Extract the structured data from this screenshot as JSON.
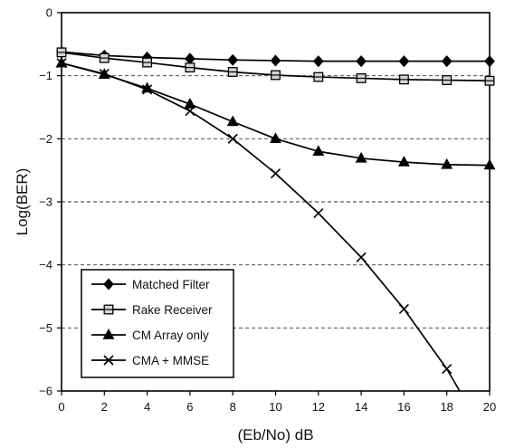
{
  "chart_data": {
    "type": "line",
    "xlabel": "(Eb/No) dB",
    "ylabel": "Log(BER)",
    "xlim": [
      0,
      20
    ],
    "ylim": [
      -6,
      0
    ],
    "xticks": [
      "0",
      "2",
      "4",
      "6",
      "8",
      "10",
      "12",
      "14",
      "16",
      "18",
      "20"
    ],
    "yticks": [
      "0",
      "-1",
      "-2",
      "-3",
      "-4",
      "-5",
      "-6"
    ],
    "grid": "dashed-horizontal",
    "legend_position": "bottom-left",
    "series": [
      {
        "name": "Matched Filter",
        "marker": "diamond",
        "x": [
          0,
          2,
          4,
          6,
          8,
          10,
          12,
          14,
          16,
          18,
          20
        ],
        "y": [
          -0.62,
          -0.68,
          -0.71,
          -0.73,
          -0.75,
          -0.76,
          -0.77,
          -0.77,
          -0.77,
          -0.77,
          -0.77
        ]
      },
      {
        "name": "Rake Receiver",
        "marker": "square",
        "x": [
          0,
          2,
          4,
          6,
          8,
          10,
          12,
          14,
          16,
          18,
          20
        ],
        "y": [
          -0.63,
          -0.72,
          -0.79,
          -0.87,
          -0.94,
          -0.99,
          -1.02,
          -1.04,
          -1.06,
          -1.07,
          -1.08
        ]
      },
      {
        "name": "CM Array only",
        "marker": "triangle",
        "x": [
          0,
          2,
          4,
          6,
          8,
          10,
          12,
          14,
          16,
          18,
          20
        ],
        "y": [
          -0.8,
          -0.98,
          -1.2,
          -1.45,
          -1.73,
          -2.0,
          -2.2,
          -2.31,
          -2.37,
          -2.41,
          -2.42
        ]
      },
      {
        "name": "CMA + MMSE",
        "marker": "x",
        "x": [
          0,
          2,
          4,
          6,
          8,
          10,
          12,
          14,
          16,
          18,
          18.6
        ],
        "y": [
          -0.8,
          -0.97,
          -1.22,
          -1.56,
          -2.0,
          -2.55,
          -3.18,
          -3.88,
          -4.7,
          -5.65,
          -6.0
        ]
      }
    ]
  }
}
